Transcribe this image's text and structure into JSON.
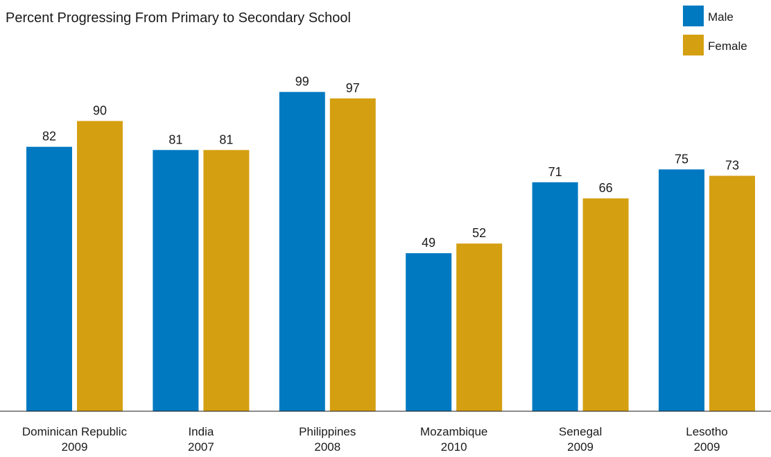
{
  "chart_data": {
    "type": "bar",
    "title": "Percent Progressing From Primary to Secondary School",
    "categories": [
      [
        "Dominican Republic",
        "2009"
      ],
      [
        "India",
        "2007"
      ],
      [
        "Philippines",
        "2008"
      ],
      [
        "Mozambique",
        "2010"
      ],
      [
        "Senegal",
        "2009"
      ],
      [
        "Lesotho",
        "2009"
      ]
    ],
    "series": [
      {
        "name": "Male",
        "color": "#0079c1",
        "values": [
          82,
          81,
          99,
          49,
          71,
          75
        ]
      },
      {
        "name": "Female",
        "color": "#d49f11",
        "values": [
          90,
          81,
          97,
          52,
          66,
          73
        ]
      }
    ],
    "ylim": [
      0,
      100
    ],
    "grid": false,
    "legend": "top-right",
    "xlabel": "",
    "ylabel": ""
  }
}
